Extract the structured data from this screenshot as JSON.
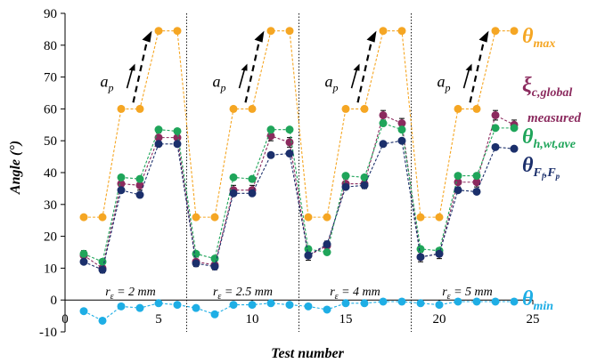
{
  "chart_data": {
    "type": "scatter",
    "xlabel": "Test number",
    "ylabel": "Angle (°)",
    "xlim": [
      0,
      25
    ],
    "ylim": [
      -10,
      90
    ],
    "x_ticks": [
      "0",
      "5",
      "10",
      "15",
      "20",
      "25"
    ],
    "y_ticks": [
      "-10",
      "0",
      "10",
      "20",
      "30",
      "40",
      "50",
      "60",
      "70",
      "80",
      "90"
    ],
    "group_dividers": [
      6.5,
      12.5,
      18.5
    ],
    "segment_labels": [
      {
        "x": 3.5,
        "r": "r",
        "sub": "ε",
        "rest": " = 2 mm"
      },
      {
        "x": 9.5,
        "r": "r",
        "sub": "ε",
        "rest": " = 2.5 mm"
      },
      {
        "x": 15.5,
        "r": "r",
        "sub": "ε",
        "rest": " = 4 mm"
      },
      {
        "x": 21.5,
        "r": "r",
        "sub": "ε",
        "rest": " = 5 mm"
      }
    ],
    "feed_arrows": [
      {
        "x": 3.5,
        "label": "a",
        "sub": "p"
      },
      {
        "x": 9.5,
        "label": "a",
        "sub": "p"
      },
      {
        "x": 15.5,
        "label": "a",
        "sub": "p"
      },
      {
        "x": 21.5,
        "label": "a",
        "sub": "p"
      }
    ],
    "x": [
      1,
      2,
      3,
      4,
      5,
      6,
      7,
      8,
      9,
      10,
      11,
      12,
      13,
      14,
      15,
      16,
      17,
      18,
      19,
      20,
      21,
      22,
      23,
      24
    ],
    "series": [
      {
        "key": "theta_max",
        "color": "#F5A623",
        "values": [
          26,
          26,
          60,
          60,
          84.5,
          84.5,
          26,
          26,
          60,
          60,
          84.5,
          84.5,
          26,
          26,
          60,
          60,
          84.5,
          84.5,
          26,
          26,
          60,
          60,
          84.5,
          84.5
        ]
      },
      {
        "key": "xi",
        "color": "#8B2A5E",
        "error": 1.5,
        "values": [
          14,
          10,
          36.5,
          36,
          51,
          51,
          12,
          11,
          34.5,
          34.5,
          51.5,
          49.5,
          14,
          17,
          36.5,
          36.5,
          58,
          55.5,
          13.5,
          14.5,
          37,
          37,
          58,
          55
        ]
      },
      {
        "key": "theta_h",
        "color": "#1FA55A",
        "values": [
          14.5,
          12,
          38.5,
          38,
          53.5,
          53,
          14.5,
          13,
          38.5,
          38,
          53.5,
          53.5,
          16,
          15,
          39,
          38.5,
          55.5,
          53.5,
          16,
          15.5,
          39,
          39,
          54,
          54
        ]
      },
      {
        "key": "theta_F",
        "color": "#1B2F6B",
        "values": [
          12,
          9.5,
          34.5,
          33,
          49,
          49,
          11.5,
          10.5,
          33.5,
          33.5,
          45.5,
          46,
          14,
          17.5,
          35.5,
          36,
          49,
          50,
          13.5,
          14.5,
          34.5,
          34,
          48,
          47.5
        ]
      },
      {
        "key": "theta_min",
        "color": "#1EAEE5",
        "values": [
          -3.5,
          -6.5,
          -2,
          -2.5,
          -1,
          -1.5,
          -2.5,
          -4.5,
          -1.5,
          -1.5,
          -1,
          -1.5,
          -2,
          -3,
          -1,
          -1,
          -0.5,
          -0.5,
          -1,
          -1.5,
          -0.5,
          -0.5,
          -0.5,
          -0.5
        ]
      }
    ],
    "legend": {
      "theta_max": {
        "main": "θ",
        "sub": "max",
        "color": "#F5A623"
      },
      "xi": {
        "main": "ξ",
        "sub": "c,global",
        "note": "measured",
        "color": "#8B2A5E"
      },
      "theta_h": {
        "main": "θ",
        "sub": "h,wt,ave",
        "color": "#1FA55A"
      },
      "theta_F": {
        "main": "θ",
        "sub": "F",
        "subsub1": "f",
        "sep": ",",
        "sub2": "F",
        "subsub2": "p",
        "color": "#1B2F6B"
      },
      "theta_min": {
        "main": "θ",
        "sub": "min",
        "color": "#1EAEE5"
      }
    }
  }
}
